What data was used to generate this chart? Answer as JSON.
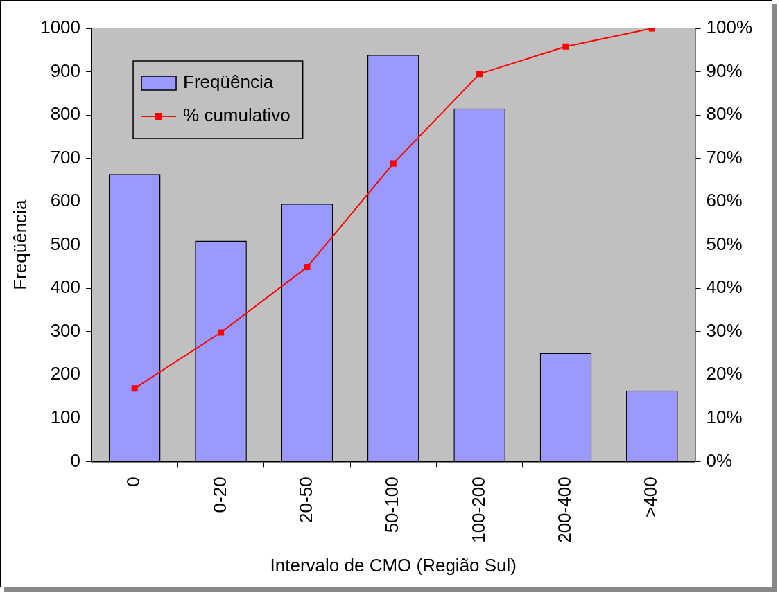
{
  "chart_data": {
    "type": "bar",
    "xlabel": "Intervalo de CMO (Região Sul)",
    "ylabel": "Freqüência",
    "categories": [
      "0",
      "0-20",
      "20-50",
      "50-100",
      "100-200",
      "200-400",
      ">400"
    ],
    "series": [
      {
        "name": "Freqüência",
        "color": "#9999ff",
        "values": [
          664,
          510,
          595,
          939,
          815,
          251,
          164
        ]
      },
      {
        "name": "% cumulativo",
        "type": "line",
        "axis": "y2",
        "color": "#ff0000",
        "marker": "square",
        "values": [
          16.9,
          29.8,
          44.9,
          68.8,
          89.5,
          95.8,
          100
        ]
      }
    ],
    "ylim": [
      0,
      1000
    ],
    "yticks": [
      0,
      100,
      200,
      300,
      400,
      500,
      600,
      700,
      800,
      900,
      1000
    ],
    "y2lim": [
      0,
      100
    ],
    "y2ticks": [
      {
        "value": 0,
        "label": "0%"
      },
      {
        "value": 10,
        "label": "10%"
      },
      {
        "value": 20,
        "label": "20%"
      },
      {
        "value": 30,
        "label": "30%"
      },
      {
        "value": 40,
        "label": "40%"
      },
      {
        "value": 50,
        "label": "50%"
      },
      {
        "value": 60,
        "label": "60%"
      },
      {
        "value": 70,
        "label": "70%"
      },
      {
        "value": 80,
        "label": "80%"
      },
      {
        "value": 90,
        "label": "90%"
      },
      {
        "value": 100,
        "label": "100%"
      }
    ],
    "grid": false,
    "legend": "top left"
  }
}
